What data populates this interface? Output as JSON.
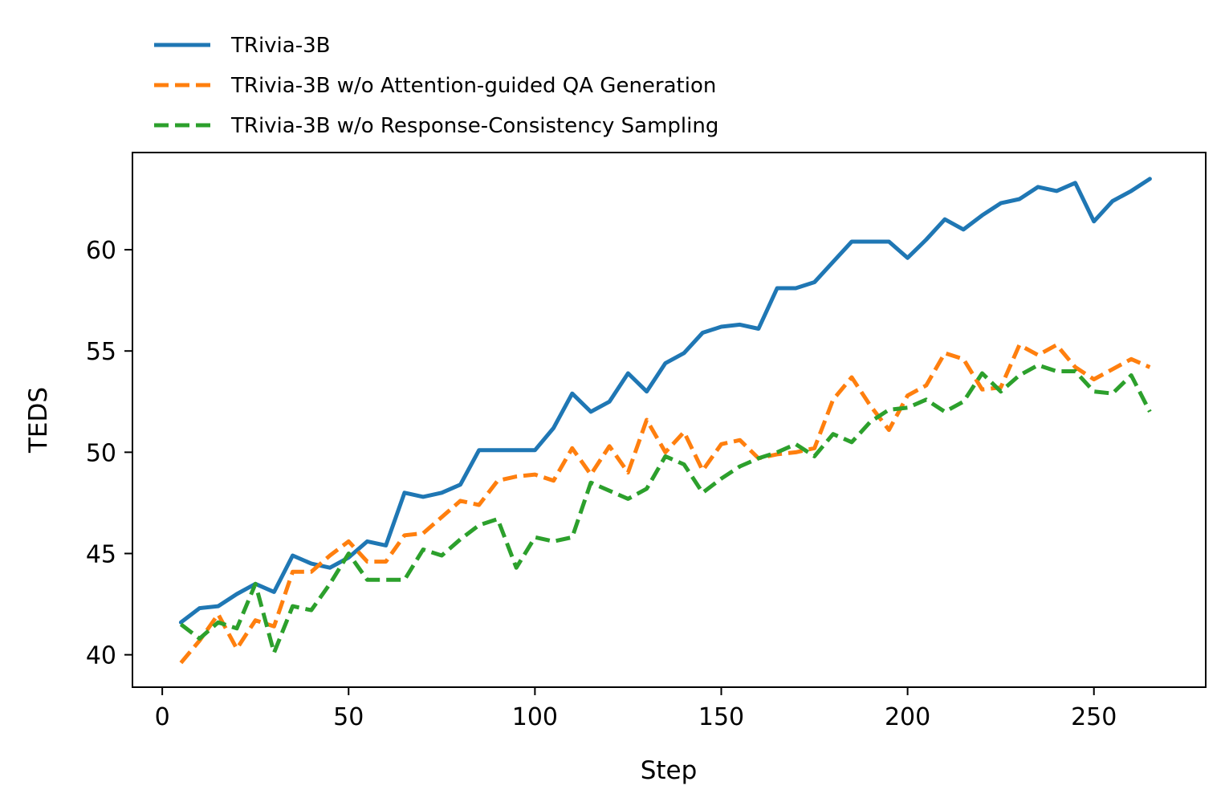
{
  "chart_data": {
    "type": "line",
    "title": "",
    "xlabel": "Step",
    "ylabel": "TEDS",
    "xlim": [
      -8,
      280
    ],
    "ylim": [
      38.4,
      64.8
    ],
    "xticks": [
      0,
      50,
      100,
      150,
      200,
      250
    ],
    "yticks": [
      40,
      45,
      50,
      55,
      60
    ],
    "grid": false,
    "legend_position": "above-left",
    "x": [
      5,
      10,
      15,
      20,
      25,
      30,
      35,
      40,
      45,
      50,
      55,
      60,
      65,
      70,
      75,
      80,
      85,
      90,
      95,
      100,
      105,
      110,
      115,
      120,
      125,
      130,
      135,
      140,
      145,
      150,
      155,
      160,
      165,
      170,
      175,
      180,
      185,
      190,
      195,
      200,
      205,
      210,
      215,
      220,
      225,
      230,
      235,
      240,
      245,
      250,
      255,
      260,
      265
    ],
    "series": [
      {
        "name": "TRivia-3B",
        "color": "#1f77b4",
        "style": "solid",
        "values": [
          41.6,
          42.3,
          42.4,
          43.0,
          43.5,
          43.1,
          44.9,
          44.5,
          44.3,
          44.8,
          45.6,
          45.4,
          48.0,
          47.8,
          48.0,
          48.4,
          50.1,
          50.1,
          50.1,
          50.1,
          51.2,
          52.9,
          52.0,
          52.5,
          53.9,
          53.0,
          54.4,
          54.9,
          55.9,
          56.2,
          56.3,
          56.1,
          58.1,
          58.1,
          58.4,
          59.4,
          60.4,
          60.4,
          60.4,
          59.6,
          60.5,
          61.5,
          61.0,
          61.7,
          62.3,
          62.5,
          63.1,
          62.9,
          63.3,
          61.4,
          62.4,
          62.9,
          63.5
        ]
      },
      {
        "name": "TRivia-3B w/o Attention-guided QA Generation",
        "color": "#ff7f0e",
        "style": "dashed",
        "values": [
          39.6,
          40.7,
          42.0,
          40.3,
          41.7,
          41.4,
          44.1,
          44.1,
          44.9,
          45.6,
          44.6,
          44.6,
          45.9,
          46.0,
          46.8,
          47.6,
          47.4,
          48.6,
          48.8,
          48.9,
          48.6,
          50.2,
          48.9,
          50.3,
          49.0,
          51.6,
          50.0,
          51.0,
          49.1,
          50.4,
          50.6,
          49.7,
          49.9,
          50.0,
          50.2,
          52.6,
          53.7,
          52.3,
          51.1,
          52.8,
          53.3,
          54.9,
          54.6,
          53.1,
          53.2,
          55.3,
          54.8,
          55.3,
          54.2,
          53.6,
          54.1,
          54.6,
          54.2
        ]
      },
      {
        "name": "TRivia-3B w/o Response-Consistency Sampling",
        "color": "#2ca02c",
        "style": "dashed",
        "values": [
          41.5,
          40.8,
          41.6,
          41.3,
          43.5,
          40.1,
          42.4,
          42.2,
          43.5,
          45.0,
          43.7,
          43.7,
          43.7,
          45.2,
          44.9,
          45.7,
          46.4,
          46.7,
          44.3,
          45.8,
          45.6,
          45.8,
          48.5,
          48.1,
          47.7,
          48.2,
          49.8,
          49.4,
          48.0,
          48.7,
          49.3,
          49.7,
          50.0,
          50.4,
          49.8,
          50.9,
          50.5,
          51.5,
          52.1,
          52.2,
          52.6,
          52.0,
          52.5,
          53.9,
          53.0,
          53.8,
          54.3,
          54.0,
          54.0,
          53.0,
          52.9,
          53.8,
          52.0
        ]
      }
    ]
  }
}
